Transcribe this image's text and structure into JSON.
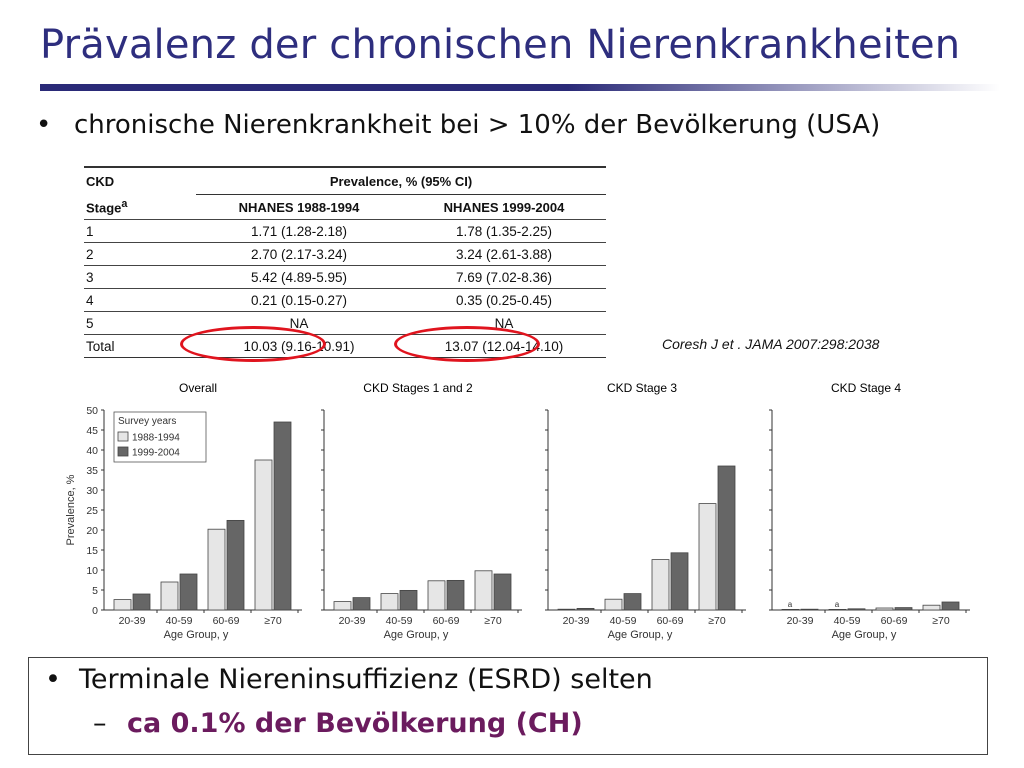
{
  "title": "Prävalenz der chronischen Nierenkrankheiten",
  "bullet1": "chronische Nierenkrankheit bei > 10% der Bevölkerung (USA)",
  "bullet_glyph": "•",
  "dash_glyph": "–",
  "citation": "Coresh J et . JAMA 2007:298:2038",
  "table": {
    "group_header": "Prevalence, % (95% CI)",
    "stage_header": "CKD Stage",
    "stage_sup": "a",
    "col1": "NHANES 1988-1994",
    "col2": "NHANES 1999-2004",
    "rows": [
      {
        "stage": "1",
        "v1": "1.71 (1.28-2.18)",
        "v2": "1.78 (1.35-2.25)"
      },
      {
        "stage": "2",
        "v1": "2.70 (2.17-3.24)",
        "v2": "3.24 (2.61-3.88)"
      },
      {
        "stage": "3",
        "v1": "5.42 (4.89-5.95)",
        "v2": "7.69 (7.02-8.36)"
      },
      {
        "stage": "4",
        "v1": "0.21 (0.15-0.27)",
        "v2": "0.35 (0.25-0.45)"
      },
      {
        "stage": "5",
        "v1": "NA",
        "v2": "NA"
      },
      {
        "stage": "Total",
        "v1": "10.03 (9.16-10.91)",
        "v2": "13.07 (12.04-14.10)"
      }
    ]
  },
  "highlight_color": "#e0141e",
  "bottom": {
    "bullet2": "Terminale Niereninsuffizienz (ESRD) selten",
    "bullet3": "ca 0.1% der Bevölkerung (CH)"
  },
  "chart_data": [
    {
      "type": "bar",
      "title": "Overall",
      "categories": [
        "20-39",
        "40-59",
        "60-69",
        "≥70"
      ],
      "series": [
        {
          "name": "1988-1994",
          "values": [
            2.6,
            7.0,
            20.2,
            37.5
          ]
        },
        {
          "name": "1999-2004",
          "values": [
            4.0,
            9.0,
            22.4,
            47.0
          ]
        }
      ],
      "ylim": [
        0,
        50
      ],
      "yticks": [
        0,
        5,
        10,
        15,
        20,
        25,
        30,
        35,
        40,
        45,
        50
      ],
      "ylabel": "Prevalence, %",
      "xlabel": "Age Group, y",
      "legend_title": "Survey years",
      "legend_position": "top-left",
      "colors": {
        "1988-1994": "#e6e6e6",
        "1999-2004": "#666666"
      }
    },
    {
      "type": "bar",
      "title": "CKD Stages 1 and 2",
      "categories": [
        "20-39",
        "40-59",
        "60-69",
        "≥70"
      ],
      "series": [
        {
          "name": "1988-1994",
          "values": [
            2.1,
            4.1,
            7.3,
            9.8
          ]
        },
        {
          "name": "1999-2004",
          "values": [
            3.1,
            4.9,
            7.4,
            9.0
          ]
        }
      ],
      "ylim": [
        0,
        50
      ],
      "xlabel": "Age Group, y"
    },
    {
      "type": "bar",
      "title": "CKD Stage 3",
      "categories": [
        "20-39",
        "40-59",
        "60-69",
        "≥70"
      ],
      "series": [
        {
          "name": "1988-1994",
          "values": [
            0.2,
            2.7,
            12.6,
            26.6
          ]
        },
        {
          "name": "1999-2004",
          "values": [
            0.4,
            4.1,
            14.3,
            36.0
          ]
        }
      ],
      "ylim": [
        0,
        50
      ],
      "xlabel": "Age Group, y"
    },
    {
      "type": "bar",
      "title": "CKD Stage 4",
      "categories": [
        "20-39",
        "40-59",
        "60-69",
        "≥70"
      ],
      "series": [
        {
          "name": "1988-1994",
          "values": [
            0.0,
            0.0,
            0.5,
            1.2
          ]
        },
        {
          "name": "1999-2004",
          "values": [
            0.2,
            0.3,
            0.6,
            2.0
          ]
        }
      ],
      "annotations": [
        {
          "category": "20-39",
          "series": "1988-1994",
          "text": "a"
        },
        {
          "category": "40-59",
          "series": "1988-1994",
          "text": "a"
        }
      ],
      "ylim": [
        0,
        50
      ],
      "xlabel": "Age Group, y"
    }
  ]
}
